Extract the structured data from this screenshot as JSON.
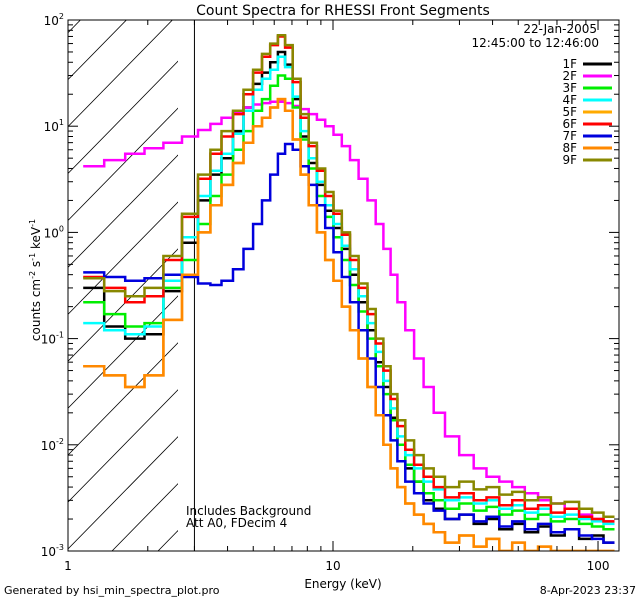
{
  "chart_data": {
    "type": "line",
    "title": "Count Spectra for RHESSI Front Segments",
    "xlabel": "Energy (keV)",
    "ylabel": "counts cm^-2 s^-1 keV^-1",
    "ylabel_parts": {
      "base": "counts cm",
      "exp1": "-2",
      "mid1": " s",
      "exp2": "-1",
      "mid2": " keV",
      "exp3": "-1"
    },
    "x_scale": "log",
    "y_scale": "log",
    "xlim": [
      1,
      120
    ],
    "ylim": [
      0.001,
      100
    ],
    "x_tick_labels": [
      {
        "value": 1,
        "label": "1"
      },
      {
        "value": 10,
        "label": "10"
      },
      {
        "value": 100,
        "label": "100"
      }
    ],
    "y_tick_labels": [
      {
        "value": 0.001,
        "base": "10",
        "exp": "-3"
      },
      {
        "value": 0.01,
        "base": "10",
        "exp": "-2"
      },
      {
        "value": 0.1,
        "base": "10",
        "exp": "-1"
      },
      {
        "value": 1,
        "base": "10",
        "exp": "0"
      },
      {
        "value": 10,
        "base": "10",
        "exp": "1"
      },
      {
        "value": 100,
        "base": "10",
        "exp": "2"
      }
    ],
    "date": "22-Jan-2005",
    "time_range": "12:45:00 to 12:46:00",
    "excluded_region": [
      1,
      3
    ],
    "annotations": [
      "Includes Background",
      "Att A0, FDecim 4"
    ],
    "legend_position": "top-right",
    "footer_left": "Generated by hsi_min_spectra_plot.pro",
    "footer_right": "8-Apr-2023 23:37",
    "energies": [
      1.25,
      1.5,
      1.8,
      2.1,
      2.5,
      2.9,
      3.3,
      3.6,
      4.0,
      4.4,
      4.8,
      5.2,
      5.6,
      6.0,
      6.4,
      6.8,
      7.3,
      7.8,
      8.4,
      9.0,
      9.7,
      10.4,
      11.2,
      12.0,
      13.0,
      14.0,
      15.0,
      16.0,
      17.0,
      18.0,
      19.5,
      21.0,
      23.0,
      25.0,
      28.0,
      32.0,
      36.0,
      40.0,
      45.0,
      50.0,
      56.0,
      63.0,
      70.0,
      80.0,
      90.0,
      100.0,
      110.0
    ],
    "series": [
      {
        "name": "1F",
        "color": "#000000",
        "values": [
          0.3,
          0.13,
          0.1,
          0.11,
          0.28,
          0.8,
          2.0,
          3.5,
          5.0,
          9.0,
          15,
          25,
          32,
          40,
          50,
          38,
          18,
          8,
          4.5,
          2.8,
          1.6,
          1.1,
          0.7,
          0.4,
          0.22,
          0.12,
          0.06,
          0.035,
          0.018,
          0.01,
          0.006,
          0.0045,
          0.003,
          0.0025,
          0.002,
          0.0022,
          0.0018,
          0.002,
          0.0016,
          0.0018,
          0.0015,
          0.0017,
          0.0014,
          0.0016,
          0.0013,
          0.0014,
          0.0012
        ]
      },
      {
        "name": "2F",
        "color": "#ff00ff",
        "values": [
          4.2,
          4.8,
          5.5,
          6.2,
          7.0,
          8.0,
          9.2,
          10.5,
          12,
          13.5,
          15,
          16,
          16.5,
          17,
          17,
          16.5,
          15.5,
          14.5,
          13,
          11.5,
          10,
          8.3,
          6.5,
          4.8,
          3.2,
          2.0,
          1.2,
          0.7,
          0.4,
          0.22,
          0.12,
          0.065,
          0.035,
          0.02,
          0.012,
          0.008,
          0.006,
          0.005,
          0.0045,
          0.004,
          0.0035,
          0.003,
          0.0028,
          0.0025,
          0.0022,
          0.002,
          0.0019
        ]
      },
      {
        "name": "3F",
        "color": "#00ee00",
        "values": [
          0.22,
          0.17,
          0.13,
          0.14,
          0.3,
          0.55,
          1.2,
          2.2,
          3.5,
          6.0,
          9.0,
          14,
          18,
          24,
          30,
          28,
          15,
          7.5,
          4.0,
          2.2,
          1.4,
          0.9,
          0.55,
          0.32,
          0.18,
          0.1,
          0.055,
          0.03,
          0.017,
          0.01,
          0.0065,
          0.0045,
          0.0035,
          0.003,
          0.0025,
          0.0028,
          0.0024,
          0.0026,
          0.0022,
          0.0024,
          0.002,
          0.0022,
          0.0019,
          0.002,
          0.0018,
          0.0017,
          0.0016
        ]
      },
      {
        "name": "4F",
        "color": "#00ffff",
        "values": [
          0.14,
          0.12,
          0.11,
          0.13,
          0.35,
          0.9,
          2.2,
          3.8,
          5.5,
          8.5,
          14,
          22,
          28,
          34,
          45,
          36,
          19,
          9,
          5,
          3.0,
          1.8,
          1.2,
          0.75,
          0.45,
          0.25,
          0.14,
          0.075,
          0.04,
          0.022,
          0.012,
          0.008,
          0.006,
          0.0045,
          0.0038,
          0.003,
          0.0032,
          0.0028,
          0.003,
          0.0025,
          0.0027,
          0.0023,
          0.0025,
          0.0021,
          0.0022,
          0.002,
          0.0019,
          0.0018
        ]
      },
      {
        "name": "5F",
        "color": "#ffaa00",
        "values": [
          0.055,
          0.045,
          0.035,
          0.045,
          0.15,
          0.4,
          1.0,
          1.8,
          2.8,
          4.5,
          7.0,
          10,
          12,
          15,
          18,
          14,
          7.5,
          3.5,
          1.8,
          1.0,
          0.55,
          0.35,
          0.2,
          0.12,
          0.065,
          0.035,
          0.019,
          0.01,
          0.006,
          0.004,
          0.0028,
          0.0022,
          0.0018,
          0.0015,
          0.0012,
          0.0014,
          0.0011,
          0.0013,
          0.001,
          0.0012,
          0.001,
          0.0011,
          0.001,
          0.001,
          0.001,
          0.001,
          0.001
        ]
      },
      {
        "name": "6F",
        "color": "#ff0000",
        "values": [
          0.38,
          0.3,
          0.22,
          0.25,
          0.55,
          1.4,
          3.2,
          5.5,
          8.0,
          13,
          20,
          32,
          45,
          58,
          70,
          55,
          26,
          12,
          6.5,
          3.8,
          2.2,
          1.5,
          0.95,
          0.55,
          0.3,
          0.17,
          0.09,
          0.05,
          0.027,
          0.015,
          0.009,
          0.0065,
          0.005,
          0.004,
          0.0032,
          0.0035,
          0.003,
          0.0032,
          0.0027,
          0.003,
          0.0025,
          0.0027,
          0.0023,
          0.0025,
          0.0021,
          0.002,
          0.0019
        ]
      },
      {
        "name": "7F",
        "color": "#0000dd",
        "values": [
          0.42,
          0.38,
          0.35,
          0.37,
          0.4,
          0.38,
          0.33,
          0.32,
          0.35,
          0.45,
          0.7,
          1.2,
          2.0,
          3.5,
          5.5,
          6.8,
          6.0,
          4.2,
          2.8,
          1.8,
          1.1,
          0.65,
          0.38,
          0.22,
          0.12,
          0.065,
          0.035,
          0.019,
          0.011,
          0.007,
          0.0045,
          0.0035,
          0.0028,
          0.0024,
          0.002,
          0.0022,
          0.0019,
          0.0021,
          0.0017,
          0.0019,
          0.0016,
          0.0018,
          0.0015,
          0.0016,
          0.0014,
          0.0013,
          0.0012
        ]
      },
      {
        "name": "8F",
        "color": "#ff8800",
        "values": [
          0.055,
          0.045,
          0.035,
          0.045,
          0.15,
          0.4,
          1.0,
          1.8,
          2.8,
          4.5,
          7.0,
          10,
          12,
          15,
          18,
          14,
          7.5,
          3.5,
          1.8,
          1.0,
          0.55,
          0.35,
          0.2,
          0.12,
          0.065,
          0.035,
          0.019,
          0.01,
          0.006,
          0.004,
          0.0028,
          0.0022,
          0.0018,
          0.0015,
          0.0012,
          0.0014,
          0.0011,
          0.0013,
          0.001,
          0.0012,
          0.001,
          0.0011,
          0.001,
          0.001,
          0.001,
          0.001,
          0.001
        ]
      },
      {
        "name": "9F",
        "color": "#888800",
        "values": [
          0.37,
          0.28,
          0.25,
          0.3,
          0.6,
          1.5,
          3.5,
          6.0,
          9.0,
          14,
          22,
          34,
          48,
          60,
          72,
          58,
          28,
          13,
          7.0,
          4.0,
          2.4,
          1.6,
          1.0,
          0.6,
          0.33,
          0.19,
          0.1,
          0.055,
          0.03,
          0.017,
          0.011,
          0.008,
          0.006,
          0.005,
          0.004,
          0.0045,
          0.0038,
          0.004,
          0.0034,
          0.0036,
          0.003,
          0.0032,
          0.0028,
          0.0029,
          0.0025,
          0.0023,
          0.0021
        ]
      }
    ]
  }
}
